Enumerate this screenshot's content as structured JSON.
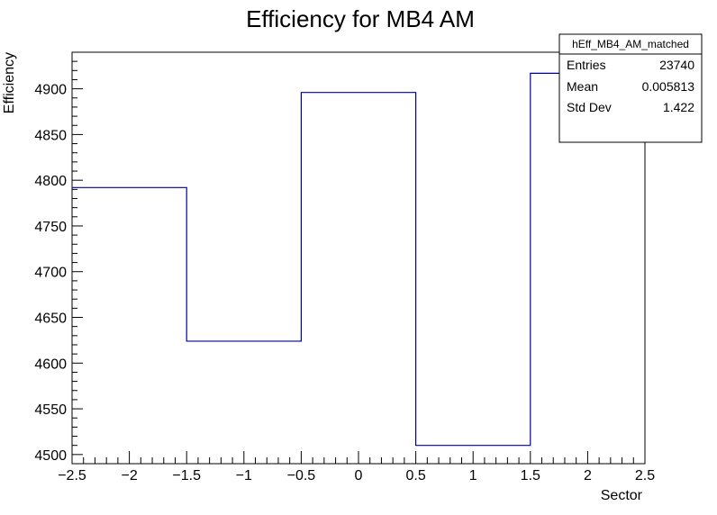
{
  "chart_data": {
    "type": "bar",
    "title": "Efficiency for MB4 AM",
    "xlabel": "Sector",
    "ylabel": "Efficiency",
    "xlim": [
      -2.5,
      2.5
    ],
    "ylim": [
      4490,
      4940
    ],
    "x_ticks": [
      -2.5,
      -2,
      -1.5,
      -1,
      -0.5,
      0,
      0.5,
      1,
      1.5,
      2,
      2.5
    ],
    "x_tick_labels": [
      "−2.5",
      "−2",
      "−1.5",
      "−1",
      "−0.5",
      "0",
      "0.5",
      "1",
      "1.5",
      "2",
      "2.5"
    ],
    "y_ticks": [
      4500,
      4550,
      4600,
      4650,
      4700,
      4750,
      4800,
      4850,
      4900
    ],
    "y_tick_labels": [
      "4500",
      "4550",
      "4600",
      "4650",
      "4700",
      "4750",
      "4800",
      "4850",
      "4900"
    ],
    "bins": [
      {
        "low": -2.5,
        "high": -1.5,
        "value": 4792
      },
      {
        "low": -1.5,
        "high": -0.5,
        "value": 4624
      },
      {
        "low": -0.5,
        "high": 0.5,
        "value": 4896
      },
      {
        "low": 0.5,
        "high": 1.5,
        "value": 4510
      },
      {
        "low": 1.5,
        "high": 2.5,
        "value": 4917
      }
    ],
    "line_color": "#000099",
    "grid": false,
    "stats_box": {
      "name": "hEff_MB4_AM_matched",
      "rows": [
        {
          "label": "Entries",
          "value": "23740"
        },
        {
          "label": "Mean",
          "value": "0.005813"
        },
        {
          "label": "Std Dev",
          "value": "1.422"
        }
      ]
    }
  }
}
